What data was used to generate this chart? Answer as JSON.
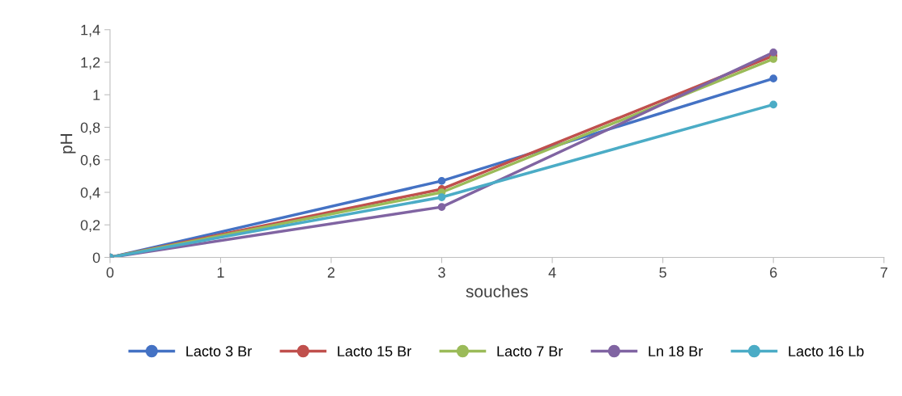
{
  "chart_data": {
    "type": "line",
    "xlabel": "souches",
    "ylabel": "pH",
    "x": [
      0,
      3,
      6
    ],
    "series": [
      {
        "name": "Lacto 3 Br",
        "color": "#4472c4",
        "values": [
          0,
          0.47,
          1.1
        ]
      },
      {
        "name": "Lacto 15 Br",
        "color": "#c0504d",
        "values": [
          0,
          0.42,
          1.24
        ]
      },
      {
        "name": "Lacto 7 Br",
        "color": "#9bbb59",
        "values": [
          0,
          0.4,
          1.22
        ]
      },
      {
        "name": "Ln 18 Br",
        "color": "#8064a2",
        "values": [
          0,
          0.31,
          1.26
        ]
      },
      {
        "name": "Lacto 16 Lb",
        "color": "#4bacc6",
        "values": [
          0,
          0.37,
          0.94
        ]
      }
    ],
    "xlim": [
      0,
      7
    ],
    "xticks": [
      0,
      1,
      2,
      3,
      4,
      5,
      6,
      7
    ],
    "ylim": [
      0,
      1.4
    ],
    "yticks": [
      0,
      {
        "value": 0.2,
        "label": "0,2"
      },
      {
        "value": 0.4,
        "label": "0,4"
      },
      {
        "value": 0.6,
        "label": "0,6"
      },
      {
        "value": 0.8,
        "label": "0,8"
      },
      1,
      {
        "value": 1.2,
        "label": "1,2"
      },
      {
        "value": 1.4,
        "label": "1,4"
      }
    ],
    "grid": false,
    "legend": "bottom",
    "marker": "circle",
    "line_style": "solid"
  }
}
